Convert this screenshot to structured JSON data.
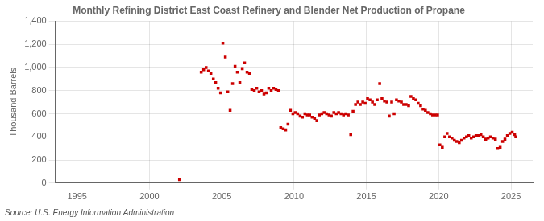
{
  "chart_data": {
    "type": "scatter",
    "title": "Monthly Refining District East Coast Refinery and Blender Net Production of Propane",
    "y_label": "Thousand Barrels",
    "annotations": [
      "Source: U.S. Energy Information Administration"
    ],
    "color": "#CC0000",
    "marker": "square",
    "grid": true,
    "xlim": [
      1993.5,
      2026.5
    ],
    "xticks": [
      1995,
      2000,
      2005,
      2010,
      2015,
      2020,
      2025
    ],
    "ylim": [
      0,
      1400
    ],
    "yticks": [
      0,
      200,
      400,
      600,
      800,
      {
        "value": 1000,
        "label": "1,000"
      },
      {
        "value": 1200,
        "label": "1,200"
      },
      {
        "value": 1400,
        "label": "1,400"
      }
    ],
    "x": [
      2002.08,
      2003.58,
      2003.75,
      2003.92,
      2004.08,
      2004.25,
      2004.42,
      2004.58,
      2004.75,
      2004.92,
      2005.08,
      2005.25,
      2005.42,
      2005.58,
      2005.75,
      2005.92,
      2006.08,
      2006.25,
      2006.42,
      2006.58,
      2006.75,
      2006.92,
      2007.08,
      2007.25,
      2007.42,
      2007.58,
      2007.75,
      2007.92,
      2008.08,
      2008.25,
      2008.42,
      2008.58,
      2008.75,
      2008.92,
      2009.08,
      2009.25,
      2009.42,
      2009.58,
      2009.75,
      2009.92,
      2010.08,
      2010.25,
      2010.42,
      2010.58,
      2010.75,
      2010.92,
      2011.08,
      2011.25,
      2011.42,
      2011.58,
      2011.75,
      2011.92,
      2012.08,
      2012.25,
      2012.42,
      2012.58,
      2012.75,
      2012.92,
      2013.08,
      2013.25,
      2013.42,
      2013.58,
      2013.75,
      2013.92,
      2014.08,
      2014.25,
      2014.42,
      2014.58,
      2014.75,
      2014.92,
      2015.08,
      2015.25,
      2015.42,
      2015.58,
      2015.75,
      2015.92,
      2016.08,
      2016.25,
      2016.42,
      2016.58,
      2016.75,
      2016.92,
      2017.08,
      2017.25,
      2017.42,
      2017.58,
      2017.75,
      2017.92,
      2018.08,
      2018.25,
      2018.42,
      2018.58,
      2018.75,
      2018.92,
      2019.08,
      2019.25,
      2019.42,
      2019.58,
      2019.75,
      2019.92,
      2020.08,
      2020.25,
      2020.42,
      2020.58,
      2020.75,
      2020.92,
      2021.08,
      2021.25,
      2021.42,
      2021.58,
      2021.75,
      2021.92,
      2022.08,
      2022.25,
      2022.42,
      2022.58,
      2022.75,
      2022.92,
      2023.08,
      2023.25,
      2023.42,
      2023.58,
      2023.75,
      2023.92,
      2024.08,
      2024.25,
      2024.42,
      2024.58,
      2024.75,
      2024.92,
      2025.08,
      2025.25,
      2025.33
    ],
    "values": [
      30,
      960,
      980,
      1000,
      970,
      950,
      900,
      870,
      820,
      780,
      1210,
      1090,
      790,
      630,
      860,
      1010,
      960,
      870,
      990,
      1040,
      960,
      950,
      810,
      800,
      820,
      790,
      800,
      770,
      780,
      820,
      800,
      820,
      810,
      800,
      480,
      470,
      460,
      510,
      630,
      600,
      610,
      600,
      580,
      570,
      600,
      590,
      590,
      570,
      560,
      540,
      590,
      600,
      610,
      600,
      590,
      580,
      610,
      600,
      610,
      600,
      590,
      600,
      590,
      420,
      620,
      680,
      700,
      680,
      700,
      690,
      730,
      720,
      700,
      680,
      720,
      860,
      730,
      710,
      700,
      580,
      700,
      600,
      720,
      710,
      700,
      680,
      680,
      670,
      750,
      730,
      720,
      690,
      670,
      640,
      630,
      610,
      600,
      590,
      590,
      590,
      330,
      310,
      400,
      430,
      400,
      390,
      370,
      360,
      350,
      370,
      390,
      400,
      410,
      390,
      400,
      410,
      410,
      420,
      400,
      380,
      390,
      400,
      390,
      380,
      300,
      310,
      360,
      380,
      410,
      430,
      440,
      420,
      400
    ]
  }
}
